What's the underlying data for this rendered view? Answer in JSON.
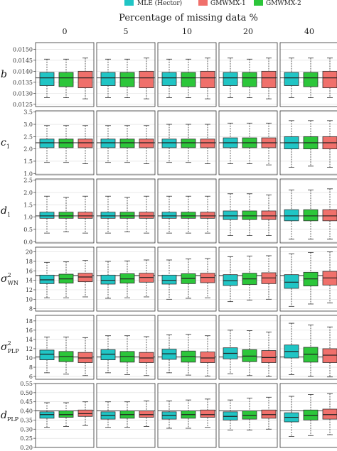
{
  "chart_data": {
    "type": "boxplot",
    "title": "Percentage of missing data %",
    "columns": [
      "0",
      "5",
      "10",
      "20",
      "40"
    ],
    "methods": [
      {
        "name": "MLE (Hector)",
        "color": "#20c5c5"
      },
      {
        "name": "GMWMX-1",
        "color": "#f0706b"
      },
      {
        "name": "GMWMX-2",
        "color": "#2cc63a"
      }
    ],
    "draw_order": [
      0,
      2,
      1
    ],
    "rows": [
      {
        "label": "b",
        "sub": "",
        "sup": "",
        "ylim": [
          0.0124,
          0.0153
        ],
        "ticks": [
          "0.0125",
          "0.0130",
          "0.0135",
          "0.0140",
          "0.0145",
          "0.0150"
        ],
        "ref": 0.0137,
        "boxes": [
          [
            [
              0.0128,
              0.01335,
              0.0137,
              0.01395,
              0.01455
            ],
            [
              0.01275,
              0.01325,
              0.0137,
              0.014,
              0.0146
            ],
            [
              0.0128,
              0.0133,
              0.0137,
              0.01395,
              0.01455
            ]
          ],
          [
            [
              0.0128,
              0.01335,
              0.0137,
              0.01395,
              0.01455
            ],
            [
              0.01275,
              0.01325,
              0.0137,
              0.014,
              0.0146
            ],
            [
              0.0128,
              0.0133,
              0.0137,
              0.01395,
              0.01455
            ]
          ],
          [
            [
              0.0128,
              0.01335,
              0.0137,
              0.01395,
              0.01455
            ],
            [
              0.01275,
              0.01325,
              0.0137,
              0.014,
              0.0146
            ],
            [
              0.0128,
              0.0133,
              0.0137,
              0.01395,
              0.01455
            ]
          ],
          [
            [
              0.0128,
              0.01335,
              0.0137,
              0.01395,
              0.0146
            ],
            [
              0.01275,
              0.01325,
              0.0137,
              0.014,
              0.0146
            ],
            [
              0.0128,
              0.0133,
              0.0137,
              0.01395,
              0.01455
            ]
          ],
          [
            [
              0.0128,
              0.01335,
              0.0137,
              0.01395,
              0.0146
            ],
            [
              0.0128,
              0.01325,
              0.0137,
              0.014,
              0.0146
            ],
            [
              0.0128,
              0.0133,
              0.0137,
              0.01395,
              0.0146
            ]
          ]
        ]
      },
      {
        "label": "c",
        "sub": "1",
        "sup": "",
        "ylim": [
          0.95,
          3.55
        ],
        "ticks": [
          "1.0",
          "1.5",
          "2.0",
          "2.5",
          "3.0",
          "3.5"
        ],
        "ref": 2.25,
        "boxes": [
          [
            [
              1.45,
              2.05,
              2.25,
              2.4,
              2.95
            ],
            [
              1.4,
              2.05,
              2.25,
              2.4,
              2.95
            ],
            [
              1.45,
              2.05,
              2.25,
              2.4,
              2.95
            ]
          ],
          [
            [
              1.45,
              2.05,
              2.25,
              2.4,
              2.95
            ],
            [
              1.4,
              2.05,
              2.25,
              2.4,
              2.95
            ],
            [
              1.45,
              2.05,
              2.25,
              2.4,
              2.95
            ]
          ],
          [
            [
              1.45,
              2.05,
              2.25,
              2.4,
              3.0
            ],
            [
              1.4,
              2.05,
              2.25,
              2.4,
              3.0
            ],
            [
              1.45,
              2.05,
              2.25,
              2.4,
              3.0
            ]
          ],
          [
            [
              1.4,
              2.05,
              2.25,
              2.45,
              3.05
            ],
            [
              1.35,
              2.05,
              2.25,
              2.45,
              3.05
            ],
            [
              1.4,
              2.05,
              2.25,
              2.45,
              3.05
            ]
          ],
          [
            [
              1.25,
              2.0,
              2.25,
              2.5,
              3.15
            ],
            [
              1.25,
              2.0,
              2.25,
              2.5,
              3.15
            ],
            [
              1.3,
              2.0,
              2.25,
              2.5,
              3.15
            ]
          ]
        ]
      },
      {
        "label": "d",
        "sub": "1",
        "sup": "",
        "ylim": [
          -0.05,
          2.55
        ],
        "ticks": [
          "0.0",
          "0.5",
          "1.0",
          "1.5",
          "2.0",
          "2.5"
        ],
        "ref": 1.05,
        "boxes": [
          [
            [
              0.35,
              0.95,
              1.05,
              1.2,
              1.85
            ],
            [
              0.35,
              0.95,
              1.05,
              1.2,
              1.85
            ],
            [
              0.4,
              0.95,
              1.05,
              1.2,
              1.8
            ]
          ],
          [
            [
              0.35,
              0.95,
              1.05,
              1.2,
              1.85
            ],
            [
              0.35,
              0.95,
              1.05,
              1.2,
              1.85
            ],
            [
              0.4,
              0.95,
              1.05,
              1.2,
              1.8
            ]
          ],
          [
            [
              0.35,
              0.95,
              1.05,
              1.2,
              1.85
            ],
            [
              0.35,
              0.95,
              1.05,
              1.2,
              1.85
            ],
            [
              0.35,
              0.95,
              1.05,
              1.2,
              1.85
            ]
          ],
          [
            [
              0.25,
              0.9,
              1.05,
              1.25,
              1.95
            ],
            [
              0.25,
              0.9,
              1.05,
              1.25,
              1.9
            ],
            [
              0.25,
              0.9,
              1.05,
              1.25,
              1.95
            ]
          ],
          [
            [
              0.1,
              0.85,
              1.05,
              1.3,
              2.1
            ],
            [
              0.1,
              0.85,
              1.05,
              1.3,
              2.15
            ],
            [
              0.1,
              0.85,
              1.05,
              1.3,
              2.1
            ]
          ]
        ]
      },
      {
        "label": "σ",
        "sub": "WN",
        "sup": "2",
        "ylim": [
          7.5,
          21
        ],
        "ticks": [
          "8",
          "10",
          "12",
          "14",
          "16",
          "18",
          "20"
        ],
        "ref": 15,
        "boxes": [
          [
            [
              10.3,
              13.3,
              14.1,
              15.1,
              17.8
            ],
            [
              10.5,
              13.7,
              14.7,
              15.5,
              18.2
            ],
            [
              10.3,
              13.4,
              14.3,
              15.3,
              17.9
            ]
          ],
          [
            [
              10.2,
              13.2,
              14.0,
              15.1,
              18.0
            ],
            [
              10.5,
              13.6,
              14.6,
              15.5,
              18.3
            ],
            [
              10.3,
              13.4,
              14.3,
              15.4,
              18.1
            ]
          ],
          [
            [
              10.0,
              13.2,
              14.0,
              15.1,
              18.3
            ],
            [
              10.3,
              13.5,
              14.6,
              15.5,
              18.6
            ],
            [
              10.2,
              13.3,
              14.4,
              15.4,
              18.5
            ]
          ],
          [
            [
              9.5,
              12.9,
              13.9,
              15.2,
              19.0
            ],
            [
              10.0,
              13.3,
              14.5,
              15.6,
              19.2
            ],
            [
              9.8,
              13.1,
              14.3,
              15.5,
              19.1
            ]
          ],
          [
            [
              8.5,
              12.3,
              13.6,
              15.2,
              19.6
            ],
            [
              9.2,
              13.0,
              14.5,
              15.9,
              20.0
            ],
            [
              9.0,
              12.8,
              14.3,
              15.7,
              19.9
            ]
          ]
        ]
      },
      {
        "label": "σ",
        "sub": "PLP",
        "sup": "2",
        "ylim": [
          5.4,
          19.2
        ],
        "ticks": [
          "6",
          "8",
          "10",
          "12",
          "14",
          "16",
          "18"
        ],
        "ref": 10.2,
        "boxes": [
          [
            [
              6.8,
              9.6,
              10.8,
              11.7,
              14.5
            ],
            [
              6.2,
              9.0,
              10.0,
              11.2,
              14.4
            ],
            [
              6.5,
              9.2,
              10.3,
              11.4,
              14.5
            ]
          ],
          [
            [
              6.8,
              9.6,
              10.8,
              11.8,
              14.8
            ],
            [
              6.2,
              9.0,
              10.0,
              11.2,
              14.6
            ],
            [
              6.4,
              9.1,
              10.3,
              11.4,
              14.8
            ]
          ],
          [
            [
              6.8,
              9.7,
              10.9,
              11.9,
              15.0
            ],
            [
              6.1,
              9.0,
              10.0,
              11.3,
              14.8
            ],
            [
              6.3,
              9.1,
              10.3,
              11.5,
              15.1
            ]
          ],
          [
            [
              6.6,
              9.8,
              11.0,
              12.2,
              16.0
            ],
            [
              6.0,
              9.0,
              10.1,
              11.6,
              15.6
            ],
            [
              6.2,
              9.2,
              10.4,
              11.8,
              15.9
            ]
          ],
          [
            [
              6.4,
              10.0,
              11.4,
              12.8,
              17.5
            ],
            [
              5.9,
              9.0,
              10.6,
              12.0,
              16.7
            ],
            [
              6.0,
              9.1,
              10.8,
              12.3,
              17.1
            ]
          ]
        ]
      },
      {
        "label": "d",
        "sub": "PLP",
        "sup": "",
        "ylim": [
          0.2,
          0.55
        ],
        "ticks": [
          "0.20",
          "0.25",
          "0.30",
          "0.35",
          "0.40",
          "0.45",
          "0.50",
          "0.55"
        ],
        "ref": 0.4,
        "boxes": [
          [
            [
              0.31,
              0.36,
              0.38,
              0.395,
              0.445
            ],
            [
              0.32,
              0.37,
              0.385,
              0.405,
              0.45
            ],
            [
              0.315,
              0.365,
              0.38,
              0.4,
              0.445
            ]
          ],
          [
            [
              0.31,
              0.355,
              0.375,
              0.395,
              0.45
            ],
            [
              0.315,
              0.365,
              0.38,
              0.4,
              0.455
            ],
            [
              0.31,
              0.36,
              0.38,
              0.4,
              0.45
            ]
          ],
          [
            [
              0.305,
              0.355,
              0.375,
              0.395,
              0.455
            ],
            [
              0.31,
              0.365,
              0.38,
              0.405,
              0.465
            ],
            [
              0.305,
              0.36,
              0.38,
              0.4,
              0.46
            ]
          ],
          [
            [
              0.295,
              0.35,
              0.37,
              0.395,
              0.46
            ],
            [
              0.3,
              0.36,
              0.38,
              0.405,
              0.475
            ],
            [
              0.295,
              0.355,
              0.375,
              0.4,
              0.47
            ]
          ],
          [
            [
              0.26,
              0.34,
              0.365,
              0.39,
              0.48
            ],
            [
              0.27,
              0.355,
              0.38,
              0.41,
              0.495
            ],
            [
              0.265,
              0.35,
              0.375,
              0.405,
              0.49
            ]
          ]
        ]
      }
    ]
  }
}
